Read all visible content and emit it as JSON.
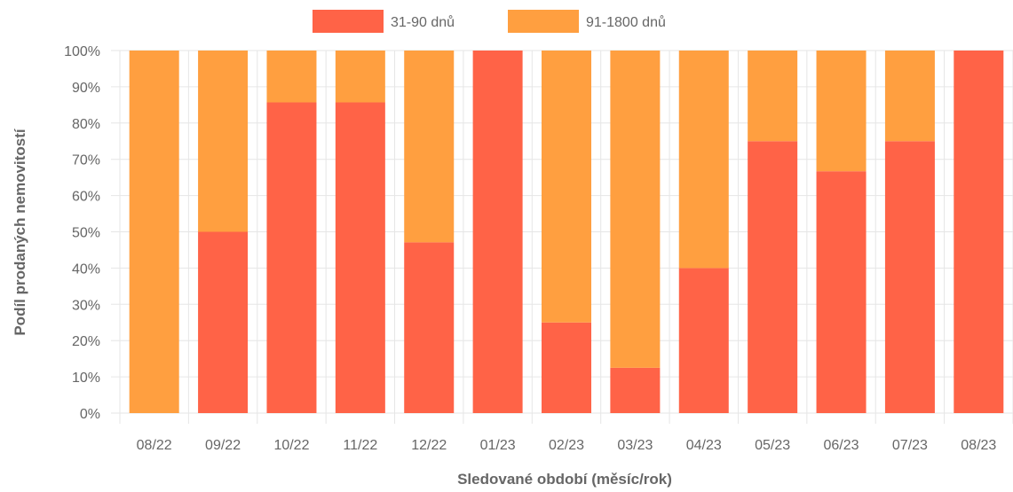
{
  "chart_data": {
    "type": "bar",
    "stacked": true,
    "categories": [
      "08/22",
      "09/22",
      "10/22",
      "11/22",
      "12/22",
      "01/23",
      "02/23",
      "03/23",
      "04/23",
      "05/23",
      "06/23",
      "07/23",
      "08/23"
    ],
    "series": [
      {
        "name": "31-90 dnů",
        "color": "#ff6347",
        "values": [
          0,
          50,
          85.7,
          85.7,
          47.1,
          100,
          25,
          12.5,
          40,
          75,
          66.7,
          75,
          100
        ]
      },
      {
        "name": "91-1800 dnů",
        "color": "#ff9f40",
        "values": [
          100,
          50,
          14.3,
          14.3,
          52.9,
          0,
          75,
          87.5,
          60,
          25,
          33.3,
          25,
          0
        ]
      }
    ],
    "xlabel": "Sledované období (měsíc/rok)",
    "ylabel": "Podíl prodaných nemovitostí",
    "ylim": [
      0,
      100
    ],
    "yticks": [
      "0%",
      "10%",
      "20%",
      "30%",
      "40%",
      "50%",
      "60%",
      "70%",
      "80%",
      "90%",
      "100%"
    ],
    "grid": true,
    "legend_position": "top"
  }
}
